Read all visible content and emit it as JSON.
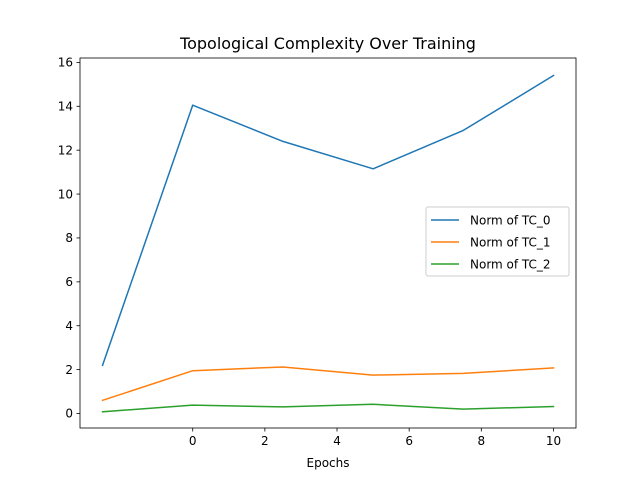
{
  "chart_data": {
    "type": "line",
    "title": "Topological Complexity Over Training",
    "xlabel": "Epochs",
    "ylabel": "",
    "x": [
      -2.5,
      0,
      2.5,
      5,
      7.5,
      10
    ],
    "xlim": [
      -3.125,
      10.625
    ],
    "ylim": [
      -0.66,
      16.2
    ],
    "xticks": [
      0,
      2,
      4,
      6,
      8,
      10
    ],
    "yticks": [
      0,
      2,
      4,
      6,
      8,
      10,
      12,
      14,
      16
    ],
    "grid": false,
    "legend_position": "center-right",
    "series": [
      {
        "name": "Norm of TC_0",
        "color": "#1f77b4",
        "values": [
          2.2,
          14.05,
          12.4,
          11.15,
          12.9,
          15.4
        ]
      },
      {
        "name": "Norm of TC_1",
        "color": "#ff7f0e",
        "values": [
          0.6,
          1.95,
          2.12,
          1.75,
          1.83,
          2.08
        ]
      },
      {
        "name": "Norm of TC_2",
        "color": "#2ca02c",
        "values": [
          0.08,
          0.38,
          0.3,
          0.42,
          0.2,
          0.32
        ]
      }
    ]
  }
}
